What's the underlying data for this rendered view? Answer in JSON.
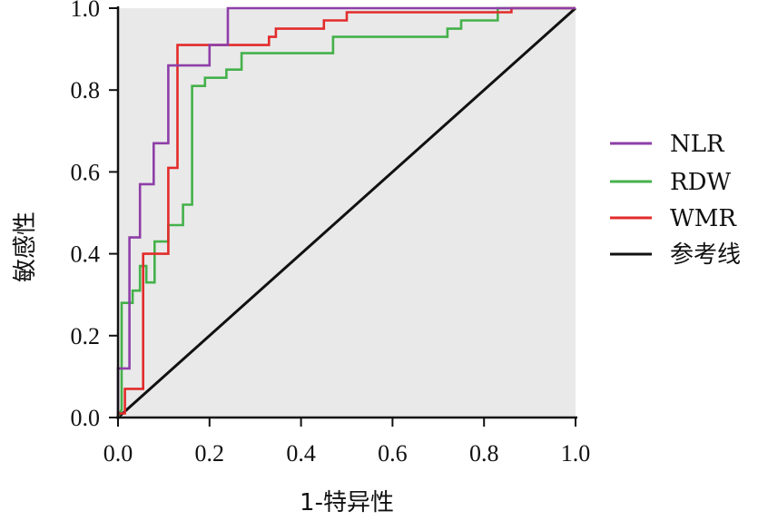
{
  "chart_data": {
    "type": "line",
    "xlabel": "1-特异性",
    "ylabel": "敏感性",
    "xlim": [
      0,
      1
    ],
    "ylim": [
      0,
      1
    ],
    "x_ticks": [
      "0.0",
      "0.2",
      "0.4",
      "0.6",
      "0.8",
      "1.0"
    ],
    "y_ticks": [
      "0.0",
      "0.2",
      "0.4",
      "0.6",
      "0.8",
      "1.0"
    ],
    "grid": false,
    "legend_position": "right",
    "plot_background": "#e9e9e9",
    "series": [
      {
        "name": "NLR",
        "color": "#8e3ea8",
        "points": [
          [
            0,
            0
          ],
          [
            0,
            0.12
          ],
          [
            0.025,
            0.12
          ],
          [
            0.025,
            0.44
          ],
          [
            0.048,
            0.44
          ],
          [
            0.048,
            0.57
          ],
          [
            0.078,
            0.57
          ],
          [
            0.078,
            0.67
          ],
          [
            0.11,
            0.67
          ],
          [
            0.11,
            0.86
          ],
          [
            0.2,
            0.86
          ],
          [
            0.2,
            0.91
          ],
          [
            0.24,
            0.91
          ],
          [
            0.24,
            1.0
          ],
          [
            0.35,
            1.0
          ],
          [
            1,
            1
          ]
        ]
      },
      {
        "name": "RDW",
        "color": "#44b14a",
        "points": [
          [
            0,
            0
          ],
          [
            0.008,
            0.02
          ],
          [
            0.008,
            0.28
          ],
          [
            0.032,
            0.28
          ],
          [
            0.032,
            0.31
          ],
          [
            0.048,
            0.31
          ],
          [
            0.048,
            0.37
          ],
          [
            0.062,
            0.37
          ],
          [
            0.062,
            0.33
          ],
          [
            0.08,
            0.33
          ],
          [
            0.08,
            0.43
          ],
          [
            0.11,
            0.43
          ],
          [
            0.11,
            0.47
          ],
          [
            0.142,
            0.47
          ],
          [
            0.142,
            0.52
          ],
          [
            0.162,
            0.52
          ],
          [
            0.162,
            0.81
          ],
          [
            0.19,
            0.81
          ],
          [
            0.19,
            0.83
          ],
          [
            0.237,
            0.83
          ],
          [
            0.237,
            0.85
          ],
          [
            0.27,
            0.85
          ],
          [
            0.27,
            0.89
          ],
          [
            0.47,
            0.89
          ],
          [
            0.47,
            0.93
          ],
          [
            0.72,
            0.93
          ],
          [
            0.72,
            0.95
          ],
          [
            0.75,
            0.95
          ],
          [
            0.75,
            0.97
          ],
          [
            0.83,
            0.97
          ],
          [
            0.83,
            1.0
          ],
          [
            1,
            1
          ]
        ]
      },
      {
        "name": "WMR",
        "color": "#e32b2b",
        "points": [
          [
            0,
            0
          ],
          [
            0,
            0.01
          ],
          [
            0.015,
            0.01
          ],
          [
            0.015,
            0.07
          ],
          [
            0.055,
            0.07
          ],
          [
            0.055,
            0.4
          ],
          [
            0.11,
            0.4
          ],
          [
            0.11,
            0.61
          ],
          [
            0.13,
            0.61
          ],
          [
            0.13,
            0.91
          ],
          [
            0.33,
            0.91
          ],
          [
            0.33,
            0.93
          ],
          [
            0.345,
            0.93
          ],
          [
            0.345,
            0.95
          ],
          [
            0.45,
            0.95
          ],
          [
            0.45,
            0.97
          ],
          [
            0.5,
            0.97
          ],
          [
            0.5,
            0.99
          ],
          [
            0.86,
            0.99
          ],
          [
            0.86,
            1.0
          ],
          [
            1,
            1
          ]
        ]
      },
      {
        "name": "参考线",
        "color": "#111111",
        "points": [
          [
            0,
            0
          ],
          [
            1,
            1
          ]
        ]
      }
    ]
  }
}
